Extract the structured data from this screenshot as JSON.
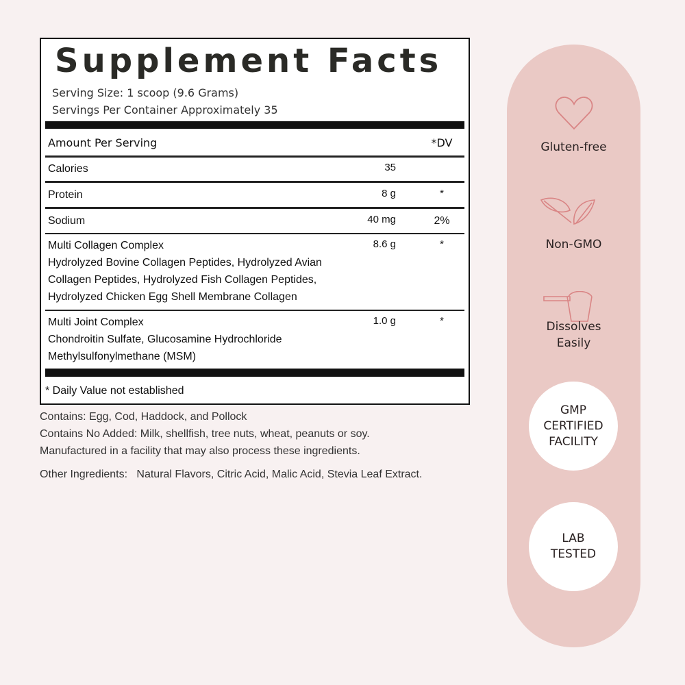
{
  "facts": {
    "title": "Supplement Facts",
    "serving_size": "Serving Size: 1 scoop (9.6 Grams)",
    "servings_per_container": "Servings Per Container Approximately 35",
    "amount_header": "Amount Per Serving",
    "dv_header": "*DV",
    "rows": [
      {
        "name": "Calories",
        "amount": "35",
        "dv": ""
      },
      {
        "name": "Protein",
        "amount": "8 g",
        "dv": "*"
      },
      {
        "name": "Sodium",
        "amount": "40 mg",
        "dv": "2%"
      },
      {
        "name": "Multi Collagen Complex",
        "amount": "8.6 g",
        "dv": "*",
        "detail": [
          "Hydrolyzed Bovine Collagen Peptides, Hydrolyzed Avian",
          "Collagen Peptides, Hydrolyzed Fish Collagen Peptides,",
          "Hydrolyzed Chicken Egg Shell Membrane Collagen"
        ]
      },
      {
        "name": "Multi Joint Complex",
        "amount": "1.0 g",
        "dv": "*",
        "detail": [
          "Chondroitin Sulfate, Glucosamine Hydrochloride",
          "Methylsulfonylmethane (MSM)"
        ]
      }
    ],
    "footnote": "* Daily Value not established"
  },
  "notes": {
    "contains": "Contains: Egg, Cod, Haddock, and Pollock",
    "no_added": "Contains No Added: Milk, shellfish, tree nuts, wheat, peanuts or soy.",
    "facility": "Manufactured in a facility that may also process these ingredients.",
    "other": "Other Ingredients:   Natural Flavors, Citric Acid, Malic Acid, Stevia Leaf Extract."
  },
  "badges": {
    "accent": "#d98585",
    "pill_color": "#eac9c5",
    "features": [
      {
        "icon": "heart-icon",
        "label": "Gluten-free"
      },
      {
        "icon": "leaves-icon",
        "label": "Non-GMO"
      },
      {
        "icon": "scoop-icon",
        "label": "Dissolves\nEasily"
      }
    ],
    "circles": [
      "GMP CERTIFIED FACILITY",
      "LAB TESTED"
    ]
  }
}
